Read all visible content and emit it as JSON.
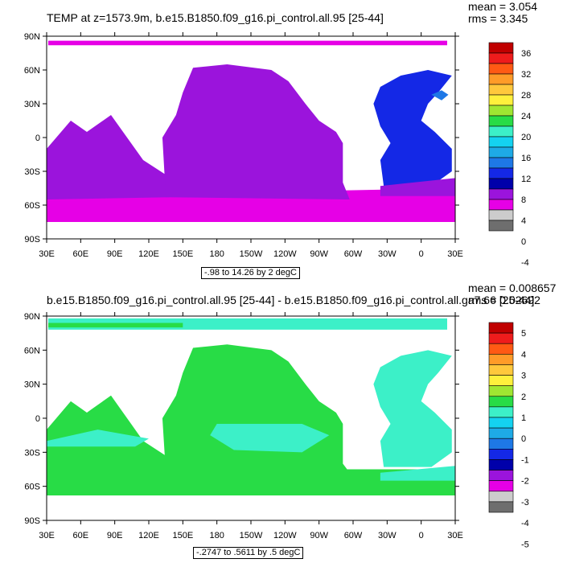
{
  "panels": [
    {
      "title": "TEMP at z=1573.9m, b.e15.B1850.f09_g16.pi_control.all.95 [25-44]",
      "mean": "mean = 3.054",
      "rms": "rms = 3.345",
      "range": "-.98 to 14.26 by 2 degC",
      "colorbar_labels": [
        "36",
        "32",
        "28",
        "24",
        "20",
        "16",
        "12",
        "8",
        "4",
        "0",
        "-4"
      ],
      "colorbar_colors": [
        "#c00000",
        "#ee1c1c",
        "#ff5a14",
        "#ff9b28",
        "#ffc83c",
        "#fff03c",
        "#a0e632",
        "#28dc46",
        "#3cf0c8",
        "#14d2f0",
        "#1eaae6",
        "#1e78e6",
        "#1428e6",
        "#0000aa",
        "#9b14dc",
        "#e600e6",
        "#cccccc",
        "#6e6e6e"
      ]
    },
    {
      "title": "b.e15.B1850.f09_g16.pi_control.all.95 [25-44] - b.e15.B1850.f09_g16.pi_control.all.ga7.66 [25-44]",
      "mean": "mean = 0.008657",
      "rms": "rms = 0.02692",
      "range": "-.2747 to .5611 by .5 degC",
      "colorbar_labels": [
        "5",
        "4",
        "3",
        "2",
        "1",
        "0",
        "-1",
        "-2",
        "-3",
        "-4",
        "-5"
      ],
      "colorbar_colors": [
        "#c00000",
        "#ee1c1c",
        "#ff5a14",
        "#ff9b28",
        "#ffc83c",
        "#fff03c",
        "#a0e632",
        "#28dc46",
        "#3cf0c8",
        "#14d2f0",
        "#1eaae6",
        "#1e78e6",
        "#1428e6",
        "#0000aa",
        "#9b14dc",
        "#e600e6",
        "#cccccc",
        "#6e6e6e"
      ]
    }
  ],
  "axes": {
    "y_labels": [
      "90N",
      "60N",
      "30N",
      "0",
      "30S",
      "60S",
      "90S"
    ],
    "x_labels": [
      "30E",
      "60E",
      "90E",
      "120E",
      "150E",
      "180",
      "150W",
      "120W",
      "90W",
      "60W",
      "30W",
      "0",
      "30E"
    ]
  },
  "colors": {
    "purple": "#9b14dc",
    "magenta": "#e600e6",
    "blue": "#1428e6",
    "light_blue": "#1e78e6",
    "green": "#28dc46",
    "cyan": "#3cf0c8"
  }
}
